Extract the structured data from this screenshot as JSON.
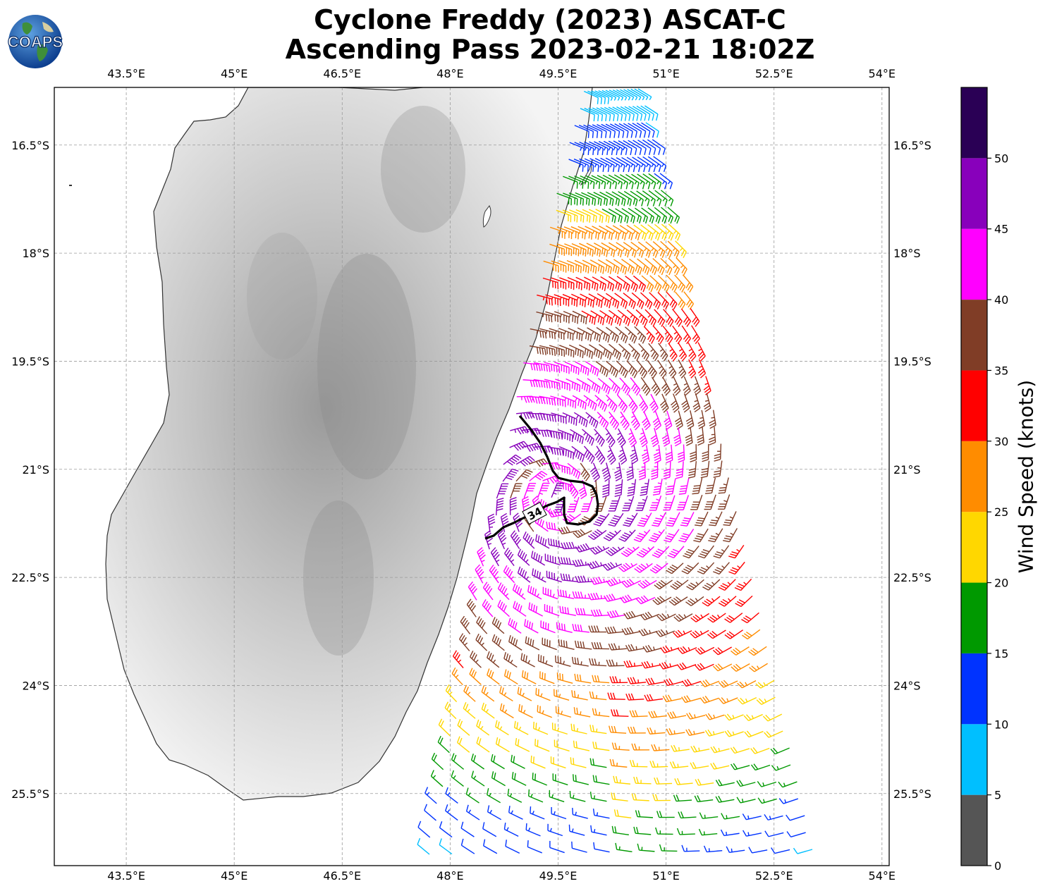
{
  "title": {
    "line1": "Cyclone Freddy (2023) ASCAT-C",
    "line2": "Ascending Pass 2023-02-21 18:02Z"
  },
  "logo": {
    "text": "COAPS",
    "icon": "globe-icon"
  },
  "map": {
    "lon_ticks": [
      "43.5°E",
      "45°E",
      "46.5°E",
      "48°E",
      "49.5°E",
      "51°E",
      "52.5°E",
      "54°E"
    ],
    "lat_ticks": [
      "16.5°S",
      "18°S",
      "19.5°S",
      "21°S",
      "22.5°S",
      "24°S",
      "25.5°S"
    ],
    "lon_values": [
      43.5,
      45,
      46.5,
      48,
      49.5,
      51,
      52.5,
      54
    ],
    "lat_values": [
      -16.5,
      -18,
      -19.5,
      -21,
      -22.5,
      -24,
      -25.5
    ],
    "extent": {
      "lon": [
        42.5,
        54.1
      ],
      "lat": [
        -26.5,
        -15.7
      ]
    },
    "gridlines": true,
    "contour_label": "34",
    "contour_value_knots": 34
  },
  "colorbar": {
    "label": "Wind Speed (knots)",
    "ticks": [
      "0",
      "5",
      "10",
      "15",
      "20",
      "25",
      "30",
      "35",
      "40",
      "45",
      "50"
    ],
    "tick_values": [
      0,
      5,
      10,
      15,
      20,
      25,
      30,
      35,
      40,
      45,
      50
    ],
    "range": [
      0,
      55
    ],
    "bins": [
      {
        "min": 0,
        "max": 5,
        "color": "#555555"
      },
      {
        "min": 5,
        "max": 10,
        "color": "#00bfff"
      },
      {
        "min": 10,
        "max": 15,
        "color": "#0033ff"
      },
      {
        "min": 15,
        "max": 20,
        "color": "#009900"
      },
      {
        "min": 20,
        "max": 25,
        "color": "#ffd700"
      },
      {
        "min": 25,
        "max": 30,
        "color": "#ff8c00"
      },
      {
        "min": 30,
        "max": 35,
        "color": "#ff0000"
      },
      {
        "min": 35,
        "max": 40,
        "color": "#803d26"
      },
      {
        "min": 40,
        "max": 45,
        "color": "#ff00ff"
      },
      {
        "min": 45,
        "max": 50,
        "color": "#8800bb"
      },
      {
        "min": 50,
        "max": 55,
        "color": "#2a0055"
      }
    ]
  }
}
